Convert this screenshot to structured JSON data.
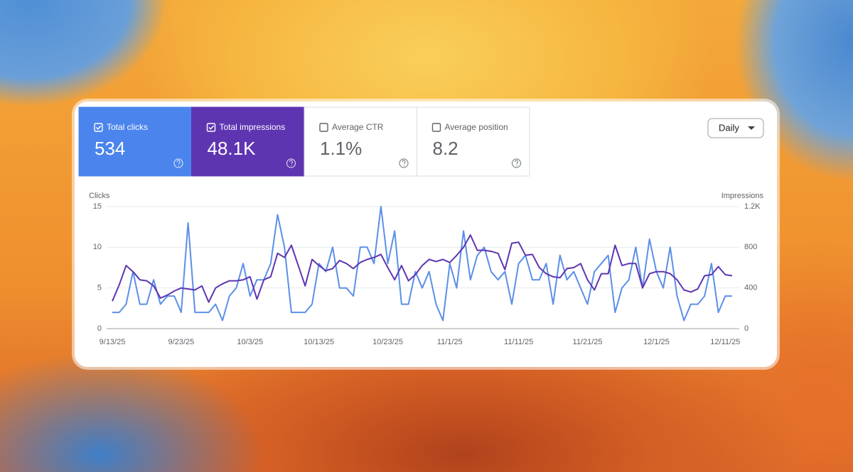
{
  "cards": [
    {
      "label": "Total clicks",
      "value": "534",
      "selected": true,
      "color": "#4a84ec"
    },
    {
      "label": "Total impressions",
      "value": "48.1K",
      "selected": true,
      "color": "#5e35b1"
    },
    {
      "label": "Average CTR",
      "value": "1.1%",
      "selected": false
    },
    {
      "label": "Average position",
      "value": "8.2",
      "selected": false
    }
  ],
  "dropdown": {
    "label": "Daily"
  },
  "chart_data": {
    "type": "line",
    "ylabel": "Clicks",
    "y2label": "Impressions",
    "categories": [
      "9/13/25",
      null,
      null,
      null,
      null,
      null,
      null,
      null,
      null,
      null,
      "9/23/25",
      null,
      null,
      null,
      null,
      null,
      null,
      null,
      null,
      null,
      "10/3/25",
      null,
      null,
      null,
      null,
      null,
      null,
      null,
      null,
      null,
      "10/13/25",
      null,
      null,
      null,
      null,
      null,
      null,
      null,
      null,
      null,
      "10/23/25",
      null,
      null,
      null,
      null,
      null,
      null,
      null,
      null,
      "11/1/25",
      null,
      null,
      null,
      null,
      null,
      null,
      null,
      null,
      null,
      "11/11/25",
      null,
      null,
      null,
      null,
      null,
      null,
      null,
      null,
      null,
      "11/21/25",
      null,
      null,
      null,
      null,
      null,
      null,
      null,
      null,
      null,
      "12/1/25",
      null,
      null,
      null,
      null,
      null,
      null,
      null,
      null,
      null,
      "12/11/25",
      null
    ],
    "series": [
      {
        "color": "#5b8fe8",
        "values": [
          2,
          2,
          3,
          7,
          3,
          3,
          6,
          3,
          4,
          4,
          2,
          13,
          2,
          2,
          2,
          3,
          1,
          4,
          5,
          8,
          4,
          6,
          6,
          8,
          14,
          10,
          2,
          2,
          2,
          3,
          8,
          7,
          10,
          5,
          5,
          4,
          10,
          10,
          8,
          15,
          8,
          12,
          3,
          3,
          7,
          5,
          7,
          3,
          1,
          8,
          5,
          12,
          6,
          9,
          10,
          7,
          6,
          7,
          3,
          8,
          9,
          6,
          6,
          8,
          3,
          9,
          6,
          7,
          5,
          3,
          7,
          8,
          9,
          2,
          5,
          6,
          10,
          5,
          11,
          7,
          5,
          10,
          4,
          1,
          3,
          3,
          4,
          8,
          2,
          4,
          4
        ]
      },
      {
        "color": "#5e35b1",
        "axis": "y2",
        "values": [
          270,
          430,
          620,
          560,
          480,
          470,
          420,
          300,
          330,
          370,
          400,
          390,
          380,
          420,
          260,
          400,
          440,
          470,
          470,
          480,
          510,
          290,
          480,
          510,
          740,
          700,
          820,
          620,
          420,
          680,
          620,
          570,
          590,
          670,
          640,
          590,
          650,
          680,
          700,
          730,
          600,
          480,
          620,
          470,
          530,
          620,
          680,
          660,
          680,
          650,
          720,
          800,
          920,
          770,
          770,
          760,
          740,
          580,
          840,
          850,
          720,
          730,
          600,
          540,
          510,
          500,
          590,
          600,
          640,
          480,
          380,
          540,
          540,
          820,
          620,
          640,
          640,
          400,
          540,
          560,
          560,
          540,
          480,
          380,
          360,
          390,
          520,
          530,
          610,
          530,
          520
        ]
      }
    ],
    "ylim": [
      0,
      15
    ],
    "yticks": [
      0,
      5,
      10,
      15
    ],
    "y2lim": [
      0,
      1200
    ],
    "y2ticks": [
      0,
      400,
      800,
      {
        "value": 1200,
        "label": "1.2K"
      }
    ],
    "grid": true
  }
}
